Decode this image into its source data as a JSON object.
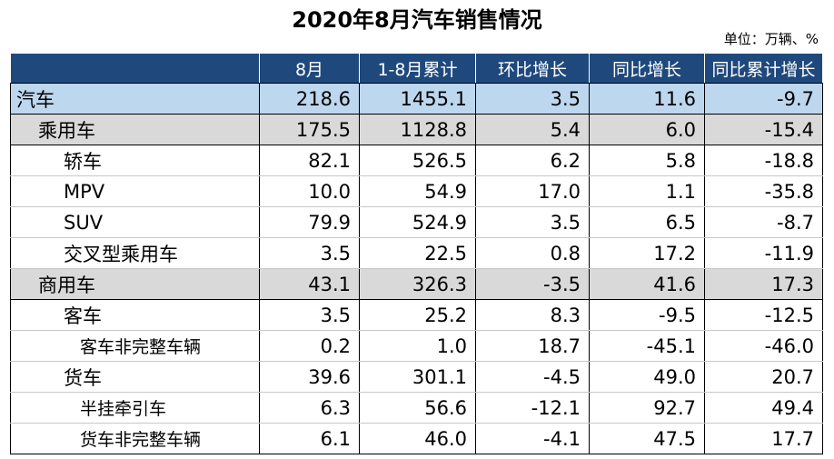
{
  "title": "2020年8月汽车销售情况",
  "unit": "单位：万辆、%",
  "columns": [
    "",
    "8月",
    "1-8月累计",
    "环比增长",
    "同比增长",
    "同比累计增长"
  ],
  "rows": [
    {
      "name": "汽车",
      "level": 0,
      "values": [
        "218.6",
        "1455.1",
        "3.5",
        "11.6",
        "-9.7"
      ]
    },
    {
      "name": "乘用车",
      "level": 1,
      "values": [
        "175.5",
        "1128.8",
        "5.4",
        "6.0",
        "-15.4"
      ]
    },
    {
      "name": "轿车",
      "level": 2,
      "values": [
        "82.1",
        "526.5",
        "6.2",
        "5.8",
        "-18.8"
      ]
    },
    {
      "name": "MPV",
      "level": 2,
      "values": [
        "10.0",
        "54.9",
        "17.0",
        "1.1",
        "-35.8"
      ]
    },
    {
      "name": "SUV",
      "level": 2,
      "values": [
        "79.9",
        "524.9",
        "3.5",
        "6.5",
        "-8.7"
      ]
    },
    {
      "name": "交叉型乘用车",
      "level": 2,
      "values": [
        "3.5",
        "22.5",
        "0.8",
        "17.2",
        "-11.9"
      ]
    },
    {
      "name": "商用车",
      "level": 1,
      "values": [
        "43.1",
        "326.3",
        "-3.5",
        "41.6",
        "17.3"
      ]
    },
    {
      "name": "客车",
      "level": 2,
      "values": [
        "3.5",
        "25.2",
        "8.3",
        "-9.5",
        "-12.5"
      ]
    },
    {
      "name": "客车非完整车辆",
      "level": 3,
      "values": [
        "0.2",
        "1.0",
        "18.7",
        "-45.1",
        "-46.0"
      ]
    },
    {
      "name": "货车",
      "level": 2,
      "values": [
        "39.6",
        "301.1",
        "-4.5",
        "49.0",
        "20.7"
      ]
    },
    {
      "name": "半挂牵引车",
      "level": 3,
      "values": [
        "6.3",
        "56.6",
        "-12.1",
        "92.7",
        "49.4"
      ]
    },
    {
      "name": "货车非完整车辆",
      "level": 3,
      "values": [
        "6.1",
        "46.0",
        "-4.1",
        "47.5",
        "17.7"
      ]
    }
  ],
  "colors": {
    "header_bg": "#1f497d",
    "total_row_bg": "#bdd7ee",
    "subtotal_row_bg": "#d9d9d9"
  }
}
